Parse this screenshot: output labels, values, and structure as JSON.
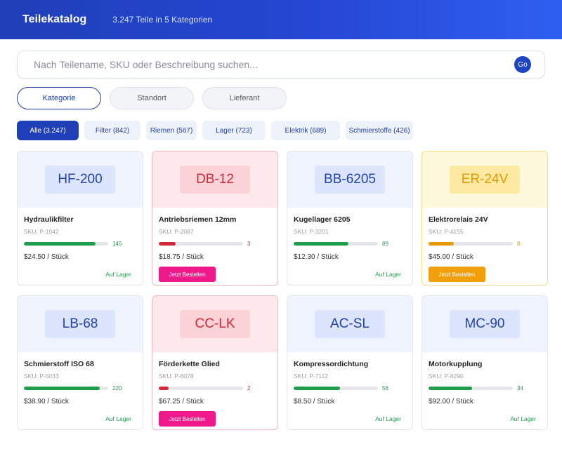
{
  "header": {
    "title": "Teilekatalog",
    "subtitle": "3.247 Teile in 5 Kategorien"
  },
  "search": {
    "placeholder": "Nach Teilename, SKU oder Beschreibung suchen...",
    "go_label": "Go"
  },
  "view_toggles": [
    {
      "label": "Kategorie",
      "active": true
    },
    {
      "label": "Standort",
      "active": false
    },
    {
      "label": "Lieferant",
      "active": false
    }
  ],
  "filter_chips": [
    {
      "label": "Alle (3.247)",
      "active": true
    },
    {
      "label": "Filter (842)",
      "active": false
    },
    {
      "label": "Riemen (567)",
      "active": false
    },
    {
      "label": "Lager (723)",
      "active": false
    },
    {
      "label": "Elektrik (689)",
      "active": false
    },
    {
      "label": "Schmierstoffe (426)",
      "active": false
    }
  ],
  "colors": {
    "brand": "#1f3fb8",
    "in_stock": "#1e9e4a",
    "critical": "#d2283a",
    "low": "#e59a00",
    "order_critical": "#f0198c",
    "order_low": "#f29f0c"
  },
  "parts": [
    {
      "code": "HF-200",
      "name": "Hydraulikfilter",
      "sku": "SKU: P-1042",
      "stock": 145,
      "stock_fraction": 0.85,
      "stock_text": "145",
      "level": "ok",
      "price": "$24.50 / Stück",
      "status": "Auf Lager",
      "action": ""
    },
    {
      "code": "DB-12",
      "name": "Antriebsriemen 12mm",
      "sku": "SKU: P-2087",
      "stock": 3,
      "stock_fraction": 0.2,
      "stock_text": "3",
      "level": "critical",
      "price": "$18.75 / Stück",
      "status": "",
      "action": "Jetzt Bestellen"
    },
    {
      "code": "BB-6205",
      "name": "Kugellager 6205",
      "sku": "SKU: P-3201",
      "stock": 89,
      "stock_fraction": 0.65,
      "stock_text": "89",
      "level": "ok",
      "price": "$12.30 / Stück",
      "status": "Auf Lager",
      "action": ""
    },
    {
      "code": "ER-24V",
      "name": "Elektrorelais 24V",
      "sku": "SKU: P-4155",
      "stock": 8,
      "stock_fraction": 0.3,
      "stock_text": "8",
      "level": "low",
      "price": "$45.00 / Stück",
      "status": "",
      "action": "Jetzt Bestellen"
    },
    {
      "code": "LB-68",
      "name": "Schmierstoff ISO 68",
      "sku": "SKU: P-5033",
      "stock": 220,
      "stock_fraction": 0.9,
      "stock_text": "220",
      "level": "ok",
      "price": "$38.90 / Stück",
      "status": "Auf Lager",
      "action": ""
    },
    {
      "code": "CC-LK",
      "name": "Förderkette Glied",
      "sku": "SKU: P-6078",
      "stock": 2,
      "stock_fraction": 0.12,
      "stock_text": "2",
      "level": "critical",
      "price": "$67.25 / Stück",
      "status": "",
      "action": "Jetzt Bestellen"
    },
    {
      "code": "AC-SL",
      "name": "Kompressordichtung",
      "sku": "SKU: P-7112",
      "stock": 56,
      "stock_fraction": 0.55,
      "stock_text": "56",
      "level": "ok",
      "price": "$8.50 / Stück",
      "status": "Auf Lager",
      "action": ""
    },
    {
      "code": "MC-90",
      "name": "Motorkupplung",
      "sku": "SKU: P-8290",
      "stock": 34,
      "stock_fraction": 0.52,
      "stock_text": "34",
      "level": "ok",
      "price": "$92.00 / Stück",
      "status": "Auf Lager",
      "action": ""
    }
  ]
}
